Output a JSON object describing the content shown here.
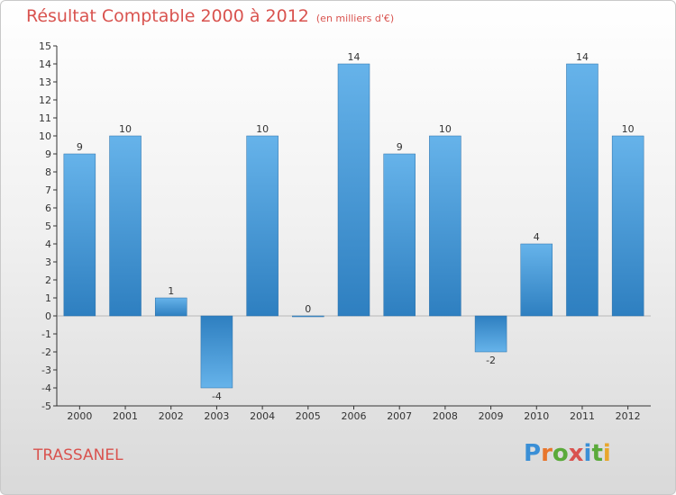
{
  "title": "Résultat Comptable 2000 à 2012",
  "subtitle": "(en milliers d'€)",
  "town": "TRASSANEL",
  "logo": {
    "letters": [
      "P",
      "r",
      "o",
      "x",
      "i",
      "t",
      "i"
    ],
    "colors": [
      "#3a8fd6",
      "#e8762c",
      "#5aaa3a",
      "#d9534f",
      "#3a8fd6",
      "#5aaa3a",
      "#e8a62c"
    ]
  },
  "colors": {
    "bar_top": "#66b3ea",
    "bar_bottom": "#2e7fc0",
    "axis": "#333333"
  },
  "chart_data": {
    "type": "bar",
    "title": "Résultat Comptable 2000 à 2012",
    "xlabel": "",
    "ylabel": "",
    "categories": [
      "2000",
      "2001",
      "2002",
      "2003",
      "2004",
      "2005",
      "2006",
      "2007",
      "2008",
      "2009",
      "2010",
      "2011",
      "2012"
    ],
    "values": [
      9,
      10,
      1,
      -4,
      10,
      0,
      14,
      9,
      10,
      -2,
      4,
      14,
      10
    ],
    "ylim": [
      -5,
      15
    ],
    "yticks": [
      -5,
      -4,
      -3,
      -2,
      -1,
      0,
      1,
      2,
      3,
      4,
      5,
      6,
      7,
      8,
      9,
      10,
      11,
      12,
      13,
      14,
      15
    ],
    "grid": false
  }
}
